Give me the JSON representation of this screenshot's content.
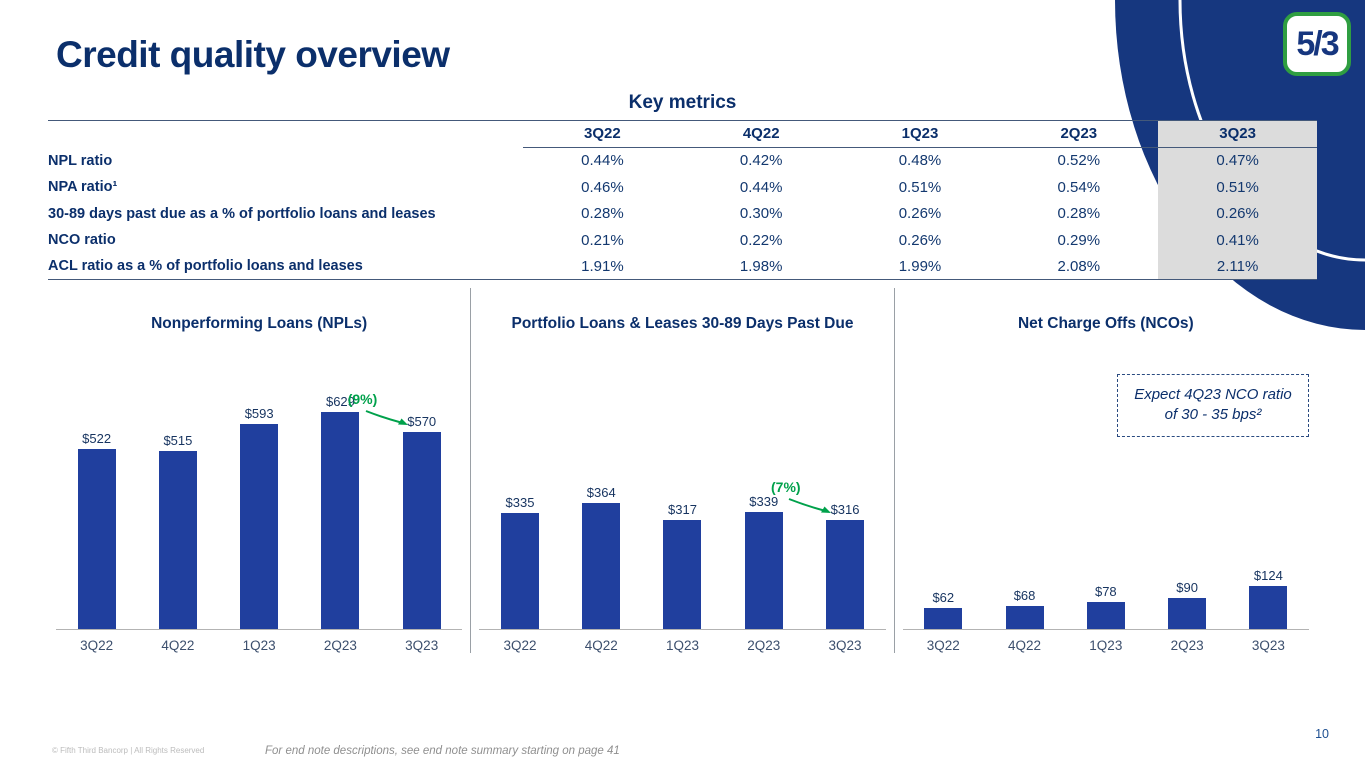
{
  "slide": {
    "title": "Credit quality overview",
    "page_number": "10",
    "copyright": "© Fifth Third Bancorp | All Rights Reserved",
    "endnote": "For end note descriptions, see end note summary starting on page 41"
  },
  "logo": {
    "text": "5/3"
  },
  "table": {
    "title": "Key metrics",
    "columns": [
      "3Q22",
      "4Q22",
      "1Q23",
      "2Q23",
      "3Q23"
    ],
    "highlighted_column": "3Q23",
    "rows": [
      {
        "label": "NPL ratio",
        "values": [
          "0.44%",
          "0.42%",
          "0.48%",
          "0.52%",
          "0.47%"
        ]
      },
      {
        "label": "NPA ratio¹",
        "values": [
          "0.46%",
          "0.44%",
          "0.51%",
          "0.54%",
          "0.51%"
        ]
      },
      {
        "label": "30-89 days past due as a % of portfolio loans and leases",
        "values": [
          "0.28%",
          "0.30%",
          "0.26%",
          "0.28%",
          "0.26%"
        ]
      },
      {
        "label": "NCO ratio",
        "values": [
          "0.21%",
          "0.22%",
          "0.26%",
          "0.29%",
          "0.41%"
        ]
      },
      {
        "label": "ACL ratio as a % of portfolio loans and leases",
        "values": [
          "1.91%",
          "1.98%",
          "1.99%",
          "2.08%",
          "2.11%"
        ]
      }
    ]
  },
  "chart_data": [
    {
      "type": "bar",
      "title": "Nonperforming Loans (NPLs)",
      "categories": [
        "3Q22",
        "4Q22",
        "1Q23",
        "2Q23",
        "3Q23"
      ],
      "values": [
        522,
        515,
        593,
        629,
        570
      ],
      "labels": [
        "$522",
        "$515",
        "$593",
        "$629",
        "$570"
      ],
      "annotation": {
        "text": "(9%)",
        "target": "3Q23"
      },
      "grid": false
    },
    {
      "type": "bar",
      "title": "Portfolio Loans & Leases 30-89 Days Past Due",
      "categories": [
        "3Q22",
        "4Q22",
        "1Q23",
        "2Q23",
        "3Q23"
      ],
      "values": [
        335,
        364,
        317,
        339,
        316
      ],
      "labels": [
        "$335",
        "$364",
        "$317",
        "$339",
        "$316"
      ],
      "annotation": {
        "text": "(7%)",
        "target": "3Q23"
      },
      "grid": false
    },
    {
      "type": "bar",
      "title": "Net Charge Offs (NCOs)",
      "categories": [
        "3Q22",
        "4Q22",
        "1Q23",
        "2Q23",
        "3Q23"
      ],
      "values": [
        62,
        68,
        78,
        90,
        124
      ],
      "labels": [
        "$62",
        "$68",
        "$78",
        "$90",
        "$124"
      ],
      "note": "Expect 4Q23 NCO ratio of 30 - 35 bps²",
      "grid": false
    }
  ],
  "colors": {
    "navy": "#0b2f6b",
    "bar_blue": "#203f9e",
    "green": "#00a14b",
    "highlight_gray": "#dcdcdc",
    "corner_blue": "#16377f",
    "logo_green": "#2f9e41"
  }
}
